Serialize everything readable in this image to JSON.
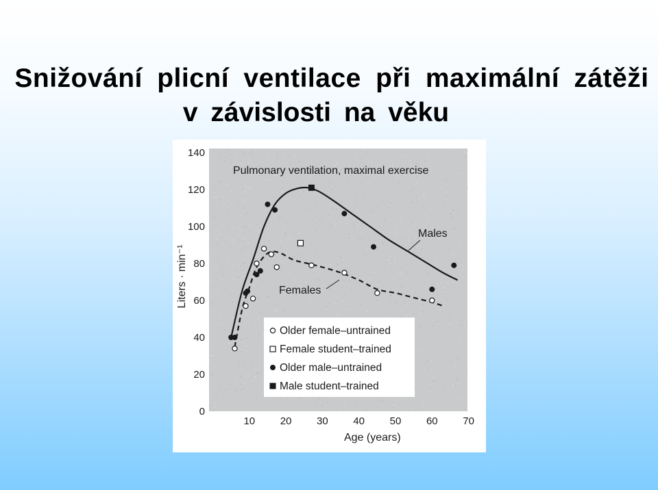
{
  "slide": {
    "title_line1": "Snižování plicní ventilace při maximální zátěži",
    "title_line2": "v závislosti na věku"
  },
  "chart_data": {
    "type": "scatter",
    "title": "Pulmonary ventilation, maximal exercise",
    "xlabel": "Age (years)",
    "ylabel": "Liters · min⁻¹",
    "xlim": [
      0,
      70
    ],
    "ylim": [
      0,
      140
    ],
    "xticks": [
      10,
      20,
      30,
      40,
      50,
      60,
      70
    ],
    "yticks": [
      0,
      20,
      40,
      60,
      80,
      100,
      120,
      140
    ],
    "grid": false,
    "legend_position": "bottom-right inside plot",
    "annotations": [
      "Males",
      "Females"
    ],
    "colors": {
      "plot_background": "#c9cacc",
      "ink": "#1a1a1a",
      "legend_background": "#ffffff"
    },
    "series": [
      {
        "name": "Older female–untrained",
        "marker": "open-circle",
        "points": [
          [
            6,
            34
          ],
          [
            9,
            57
          ],
          [
            11,
            61
          ],
          [
            12,
            80
          ],
          [
            14,
            88
          ],
          [
            16,
            85
          ],
          [
            17.5,
            78
          ],
          [
            27,
            79
          ],
          [
            36,
            75
          ],
          [
            45,
            64
          ],
          [
            60,
            60
          ]
        ]
      },
      {
        "name": "Female student–trained",
        "marker": "open-square",
        "points": [
          [
            24,
            91
          ]
        ]
      },
      {
        "name": "Older male–untrained",
        "marker": "filled-circle",
        "points": [
          [
            5,
            40
          ],
          [
            6,
            40
          ],
          [
            9,
            64
          ],
          [
            9.5,
            65
          ],
          [
            12,
            74
          ],
          [
            13,
            76
          ],
          [
            15,
            112
          ],
          [
            17,
            109
          ],
          [
            36,
            107
          ],
          [
            44,
            89
          ],
          [
            60,
            66
          ],
          [
            66,
            79
          ]
        ]
      },
      {
        "name": "Male student–trained",
        "marker": "filled-square",
        "points": [
          [
            27,
            121
          ]
        ]
      }
    ],
    "curves": [
      {
        "label": "Males",
        "style": "solid",
        "points": [
          [
            5,
            40
          ],
          [
            8,
            65
          ],
          [
            11,
            82
          ],
          [
            14,
            100
          ],
          [
            17,
            112
          ],
          [
            20,
            118
          ],
          [
            23,
            120.5
          ],
          [
            26,
            121
          ],
          [
            29,
            119
          ],
          [
            33,
            114
          ],
          [
            38,
            107
          ],
          [
            43,
            100
          ],
          [
            48,
            93
          ],
          [
            53,
            87
          ],
          [
            58,
            81
          ],
          [
            63,
            75
          ],
          [
            67,
            71
          ]
        ]
      },
      {
        "label": "Females",
        "style": "dashed",
        "points": [
          [
            6,
            35
          ],
          [
            8,
            55
          ],
          [
            10,
            67
          ],
          [
            12,
            78
          ],
          [
            15,
            85.5
          ],
          [
            18,
            86
          ],
          [
            22,
            82
          ],
          [
            26,
            80
          ],
          [
            30,
            78
          ],
          [
            35,
            75
          ],
          [
            40,
            71
          ],
          [
            45,
            66
          ],
          [
            50,
            64
          ],
          [
            55,
            61.5
          ],
          [
            60,
            59
          ],
          [
            63,
            57
          ]
        ]
      }
    ]
  }
}
